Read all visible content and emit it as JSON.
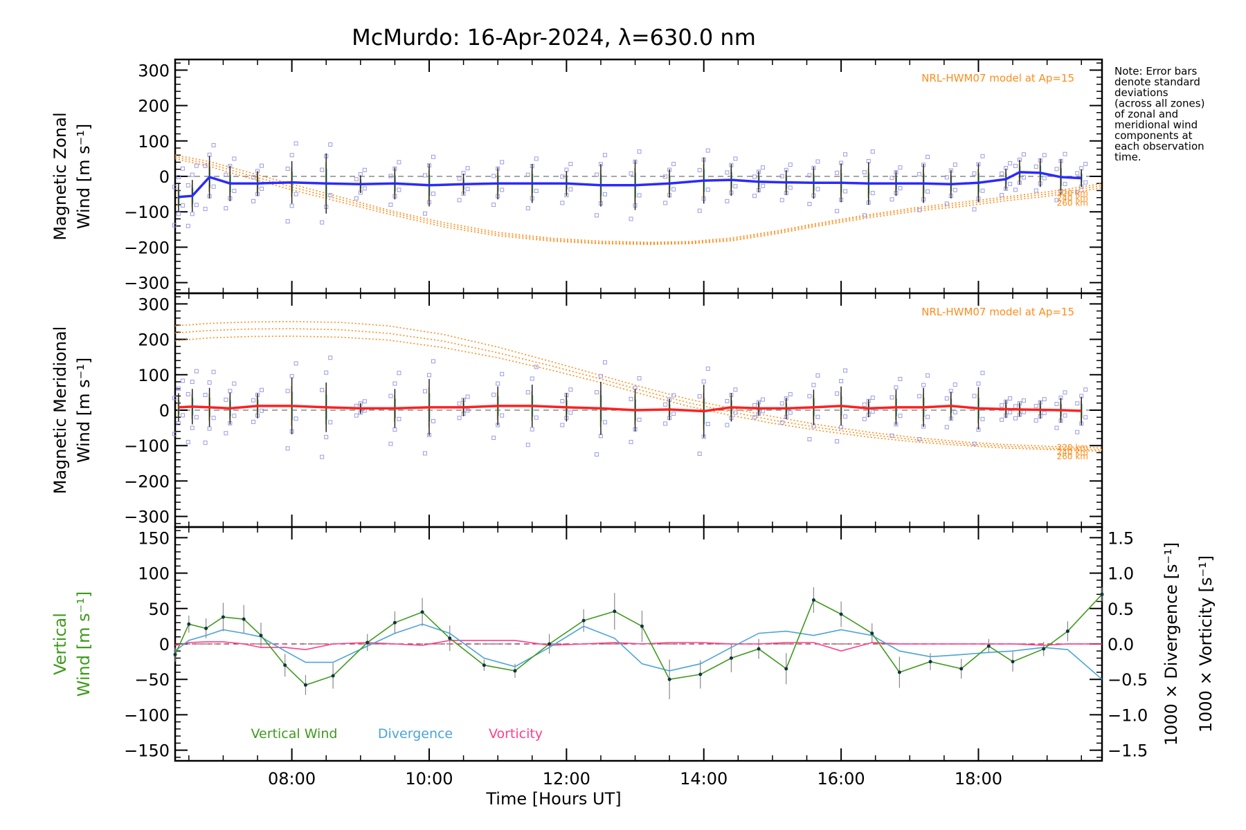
{
  "title": "McMurdo: 16-Apr-2024, λ=630.0 nm",
  "note": [
    "Note: Error bars",
    "denote standard",
    "deviations",
    "(across all zones)",
    "of zonal and",
    "meridional wind",
    "components at",
    "each observation",
    "time."
  ],
  "xaxis": {
    "label": "Time [Hours UT]",
    "range": [
      6.3,
      19.8
    ],
    "ticks": [
      8,
      10,
      12,
      14,
      16,
      18
    ],
    "tick_labels": [
      "08:00",
      "10:00",
      "12:00",
      "14:00",
      "16:00",
      "18:00"
    ]
  },
  "colors": {
    "zonal": "#2a2aff",
    "meridional": "#ff2020",
    "model": "#ff8c1a",
    "vertical": "#3f9a1c",
    "divergence": "#4aa3d8",
    "vorticity": "#ff3d8a",
    "raw": "#9a9ae6",
    "errbar": "#222222"
  },
  "chart_data": [
    {
      "type": "line",
      "panel": "zonal",
      "ylabel_lines": [
        "Magnetic Zonal",
        "Wind [m s⁻¹]"
      ],
      "ylim": [
        -330,
        330
      ],
      "yticks": [
        300,
        200,
        100,
        0,
        -100,
        -200,
        -300
      ],
      "ytick_labels": [
        "300",
        "200",
        "100",
        "0",
        "−100",
        "−200",
        "−300"
      ],
      "model_label": "NRL-HWM07 model at Ap=15",
      "altitude_labels": [
        "220 km",
        "240 km",
        "260 km"
      ],
      "x": [
        6.35,
        6.55,
        6.8,
        7.1,
        7.5,
        8.0,
        8.5,
        9.0,
        9.5,
        10.0,
        10.5,
        11.0,
        11.5,
        12.0,
        12.5,
        13.0,
        13.5,
        14.0,
        14.4,
        14.8,
        15.2,
        15.6,
        16.0,
        16.4,
        16.8,
        17.2,
        17.6,
        18.0,
        18.4,
        18.6,
        18.9,
        19.2,
        19.5
      ],
      "y": [
        -58,
        -55,
        -2,
        -20,
        -20,
        -17,
        -20,
        -22,
        -20,
        -25,
        -22,
        -20,
        -20,
        -20,
        -25,
        -25,
        -20,
        -12,
        -10,
        -15,
        -17,
        -18,
        -18,
        -20,
        -20,
        -20,
        -22,
        -18,
        -8,
        12,
        10,
        -2,
        -5
      ],
      "err": [
        40,
        45,
        60,
        50,
        35,
        60,
        85,
        25,
        45,
        60,
        30,
        45,
        55,
        35,
        60,
        70,
        40,
        65,
        45,
        30,
        35,
        45,
        55,
        60,
        35,
        55,
        40,
        55,
        30,
        35,
        40,
        50,
        25
      ],
      "raw_spread": [
        80,
        85,
        90,
        70,
        50,
        110,
        110,
        40,
        60,
        80,
        45,
        60,
        70,
        55,
        85,
        95,
        55,
        85,
        60,
        40,
        50,
        60,
        80,
        90,
        45,
        75,
        55,
        75,
        45,
        50,
        50,
        65,
        40
      ],
      "model": {
        "x": [
          6.3,
          6.8,
          7.4,
          8,
          8.7,
          9.4,
          10.2,
          11,
          11.8,
          12.5,
          13.2,
          13.8,
          14.4,
          15,
          15.7,
          16.4,
          17.1,
          17.8,
          18.4,
          19,
          19.5,
          19.8
        ],
        "curves": [
          [
            60,
            42,
            10,
            -22,
            -58,
            -95,
            -130,
            -158,
            -175,
            -183,
            -186,
            -184,
            -174,
            -156,
            -131,
            -108,
            -88,
            -72,
            -58,
            -44,
            -30,
            -20
          ],
          [
            55,
            35,
            2,
            -30,
            -65,
            -100,
            -136,
            -163,
            -179,
            -187,
            -189,
            -187,
            -178,
            -160,
            -135,
            -112,
            -93,
            -78,
            -63,
            -50,
            -36,
            -26
          ],
          [
            50,
            28,
            -6,
            -38,
            -72,
            -106,
            -142,
            -168,
            -183,
            -190,
            -192,
            -190,
            -182,
            -164,
            -139,
            -117,
            -98,
            -84,
            -69,
            -56,
            -42,
            -32
          ]
        ]
      }
    },
    {
      "type": "line",
      "panel": "meridional",
      "ylabel_lines": [
        "Magnetic Meridional",
        "Wind [m s⁻¹]"
      ],
      "ylim": [
        -330,
        330
      ],
      "yticks": [
        300,
        200,
        100,
        0,
        -100,
        -200,
        -300
      ],
      "ytick_labels": [
        "300",
        "200",
        "100",
        "0",
        "−100",
        "−200",
        "−300"
      ],
      "model_label": "NRL-HWM07 model at Ap=15",
      "altitude_labels": [
        "220 km",
        "240 km",
        "260 km"
      ],
      "x": [
        6.35,
        6.55,
        6.8,
        7.1,
        7.5,
        8.0,
        8.5,
        9.0,
        9.5,
        10.0,
        10.5,
        11.0,
        11.5,
        12.0,
        12.5,
        13.0,
        13.5,
        14.0,
        14.4,
        14.8,
        15.2,
        15.6,
        16.0,
        16.4,
        16.8,
        17.2,
        17.6,
        18.0,
        18.4,
        18.6,
        18.9,
        19.2,
        19.5
      ],
      "y": [
        8,
        10,
        8,
        5,
        12,
        12,
        8,
        5,
        5,
        8,
        8,
        12,
        12,
        8,
        5,
        0,
        2,
        -3,
        8,
        5,
        5,
        8,
        12,
        5,
        8,
        8,
        12,
        5,
        3,
        2,
        1,
        0,
        -2
      ],
      "err": [
        40,
        50,
        55,
        45,
        35,
        80,
        70,
        15,
        55,
        80,
        25,
        55,
        60,
        40,
        75,
        60,
        30,
        75,
        40,
        20,
        30,
        50,
        55,
        25,
        50,
        55,
        40,
        60,
        25,
        20,
        25,
        35,
        40
      ],
      "raw_spread": [
        75,
        100,
        100,
        70,
        45,
        120,
        140,
        20,
        100,
        130,
        30,
        90,
        110,
        50,
        130,
        90,
        40,
        120,
        50,
        25,
        40,
        90,
        100,
        30,
        80,
        90,
        60,
        100,
        30,
        25,
        30,
        50,
        60
      ],
      "model": {
        "x": [
          6.3,
          6.8,
          7.4,
          8,
          8.7,
          9.4,
          10.2,
          11,
          11.8,
          12.5,
          13.2,
          13.8,
          14.4,
          15,
          15.7,
          16.4,
          17.1,
          17.8,
          18.4,
          19,
          19.5,
          19.8
        ],
        "curves": [
          [
            238,
            245,
            249,
            250,
            248,
            238,
            214,
            178,
            136,
            98,
            60,
            30,
            5,
            -18,
            -42,
            -62,
            -78,
            -90,
            -97,
            -102,
            -105,
            -107
          ],
          [
            218,
            225,
            229,
            230,
            227,
            217,
            195,
            162,
            124,
            88,
            50,
            20,
            -5,
            -28,
            -50,
            -69,
            -84,
            -95,
            -102,
            -107,
            -110,
            -112
          ],
          [
            196,
            204,
            208,
            209,
            206,
            198,
            177,
            148,
            112,
            78,
            40,
            10,
            -15,
            -37,
            -58,
            -76,
            -90,
            -100,
            -107,
            -111,
            -114,
            -116
          ]
        ]
      }
    },
    {
      "type": "line",
      "panel": "vertical",
      "ylabel_lines": [
        "Vertical",
        "Wind [m s⁻¹]"
      ],
      "ylim": [
        -165,
        165
      ],
      "yticks": [
        150,
        100,
        50,
        0,
        -50,
        -100,
        -150
      ],
      "ytick_labels": [
        "150",
        "100",
        "50",
        "0",
        "−50",
        "−100",
        "−150"
      ],
      "y2label_1": "1000 × Divergence [s⁻¹]",
      "y2label_2": "1000 × Vorticity [s⁻¹]",
      "y2lim": [
        -1.65,
        1.65
      ],
      "y2ticks": [
        1.5,
        1.0,
        0.5,
        0.0,
        -0.5,
        -1.0,
        -1.5
      ],
      "y2tick_labels": [
        "1.5",
        "1.0",
        "0.5",
        "0.0",
        "−0.5",
        "−1.0",
        "−1.5"
      ],
      "legend": [
        "Vertical Wind",
        "Divergence",
        "Vorticity"
      ],
      "series": [
        {
          "name": "Vertical Wind",
          "x": [
            6.3,
            6.5,
            6.75,
            7.0,
            7.3,
            7.55,
            7.9,
            8.2,
            8.6,
            9.1,
            9.5,
            9.9,
            10.3,
            10.8,
            11.25,
            11.75,
            12.25,
            12.7,
            13.1,
            13.5,
            13.95,
            14.4,
            14.8,
            15.2,
            15.6,
            16.0,
            16.45,
            16.85,
            17.3,
            17.75,
            18.15,
            18.5,
            18.95,
            19.3,
            19.8
          ],
          "y": [
            -15,
            28,
            22,
            38,
            35,
            12,
            -30,
            -58,
            -45,
            2,
            30,
            45,
            8,
            -30,
            -38,
            0,
            33,
            46,
            25,
            -50,
            -43,
            -20,
            -7,
            -35,
            62,
            42,
            15,
            -40,
            -25,
            -35,
            -3,
            -25,
            -7,
            18,
            70
          ],
          "err": [
            10,
            12,
            14,
            20,
            20,
            18,
            16,
            14,
            18,
            12,
            16,
            20,
            18,
            8,
            10,
            14,
            16,
            26,
            22,
            28,
            20,
            20,
            14,
            22,
            18,
            18,
            14,
            22,
            12,
            14,
            10,
            14,
            10,
            14,
            10
          ]
        },
        {
          "name": "Divergence",
          "x": [
            6.3,
            6.5,
            6.75,
            7.0,
            7.3,
            7.55,
            7.9,
            8.2,
            8.6,
            9.1,
            9.5,
            9.9,
            10.3,
            10.8,
            11.25,
            11.75,
            12.25,
            12.7,
            13.1,
            13.5,
            13.95,
            14.4,
            14.8,
            15.2,
            15.6,
            16.0,
            16.45,
            16.85,
            17.3,
            17.75,
            18.15,
            18.5,
            18.95,
            19.3,
            19.8
          ],
          "y": [
            -0.1,
            0.05,
            0.12,
            0.2,
            0.15,
            0.1,
            -0.1,
            -0.26,
            -0.26,
            -0.03,
            0.15,
            0.28,
            0.15,
            -0.2,
            -0.32,
            -0.05,
            0.25,
            0.08,
            -0.28,
            -0.38,
            -0.28,
            -0.05,
            0.15,
            0.18,
            0.12,
            0.2,
            0.12,
            -0.1,
            -0.18,
            -0.15,
            -0.12,
            -0.1,
            -0.05,
            -0.08,
            -0.5
          ]
        },
        {
          "name": "Vorticity",
          "x": [
            6.3,
            6.5,
            6.75,
            7.0,
            7.3,
            7.55,
            7.9,
            8.2,
            8.6,
            9.1,
            9.5,
            9.9,
            10.3,
            10.8,
            11.25,
            11.75,
            12.25,
            12.7,
            13.1,
            13.5,
            13.95,
            14.4,
            14.8,
            15.2,
            15.6,
            16.0,
            16.45,
            16.85,
            17.3,
            17.75,
            18.15,
            18.5,
            18.95,
            19.3,
            19.8
          ],
          "y": [
            -0.02,
            0.02,
            0.03,
            0.03,
            0.0,
            -0.05,
            -0.05,
            -0.08,
            0.0,
            0.02,
            0.0,
            -0.02,
            0.05,
            0.05,
            0.05,
            -0.02,
            0.0,
            0.02,
            0.0,
            0.02,
            0.02,
            0.0,
            0.0,
            0.02,
            0.02,
            -0.1,
            0.02,
            0.0,
            0.0,
            0.0,
            0.0,
            0.0,
            -0.02,
            0.0,
            0.0
          ]
        }
      ]
    }
  ]
}
